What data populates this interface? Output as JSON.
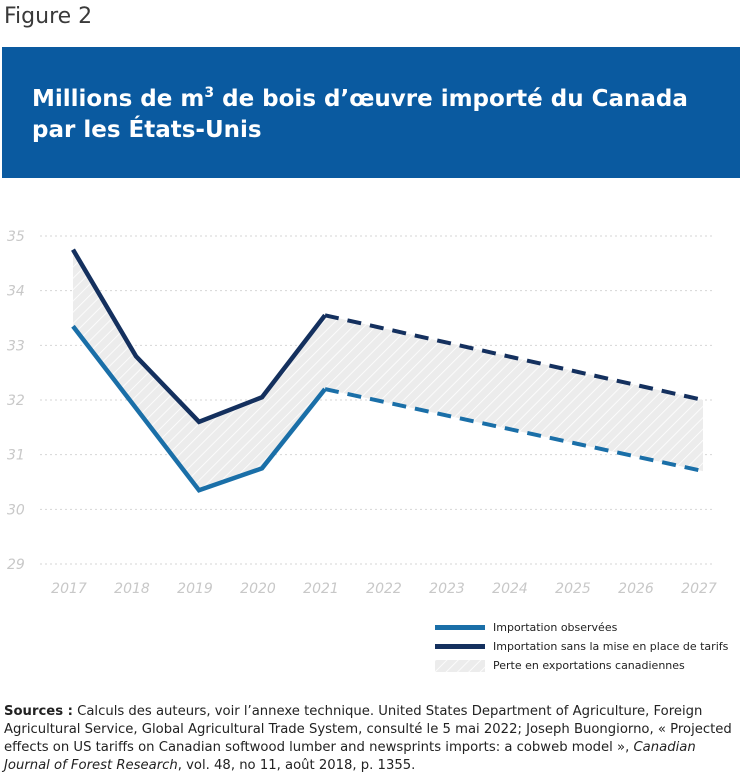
{
  "figure_label": "Figure 2",
  "title": {
    "pre": "Millions de m",
    "sup": "3",
    "post": " de bois d’œuvre importé du Canada",
    "line2": "par les États-Unis"
  },
  "colors": {
    "banner": "#0a5aa0",
    "observed": "#1a6fa8",
    "no_tariff": "#14305e",
    "loss_fill": "#ececec",
    "grid": "#d6d6d6",
    "tick_label": "#c8c8c8"
  },
  "chart_data": {
    "type": "line",
    "x": [
      "2017",
      "2018",
      "2019",
      "2020",
      "2021",
      "2022",
      "2023",
      "2024",
      "2025",
      "2026",
      "2027"
    ],
    "ylim": [
      29,
      35
    ],
    "yticks": [
      "35",
      "34",
      "33",
      "32",
      "31",
      "30",
      "29"
    ],
    "grid": true,
    "legend_position": "bottom-right",
    "series": [
      {
        "name": "Importation observées",
        "color": "#1a6fa8",
        "values": [
          33.35,
          null,
          30.35,
          30.75,
          32.2,
          null,
          null,
          null,
          null,
          null,
          30.7
        ],
        "projected_from": "2021"
      },
      {
        "name": "Importation sans la mise en place de tarifs",
        "color": "#14305e",
        "values": [
          34.75,
          32.8,
          31.6,
          32.05,
          33.55,
          null,
          null,
          null,
          null,
          null,
          32.0
        ],
        "projected_from": "2021"
      }
    ],
    "area": {
      "name": "Perte en exportations canadiennes",
      "between": [
        "Importation observées",
        "Importation sans la mise en place de tarifs"
      ]
    }
  },
  "sources": {
    "label": "Sources :",
    "text": " Calculs des auteurs, voir l’annexe technique. United States Department of Agriculture, Foreign Agricultural Service, Global Agricultural Trade System, consulté le 5 mai 2022; Joseph Buongiorno, « Projected effects on US tariffs on Canadian softwood lumber and newsprints imports: a cobweb model », ",
    "journal": "Canadian Journal of Forest Research",
    "tail": ", vol. 48, no 11, août 2018, p. 1355."
  }
}
